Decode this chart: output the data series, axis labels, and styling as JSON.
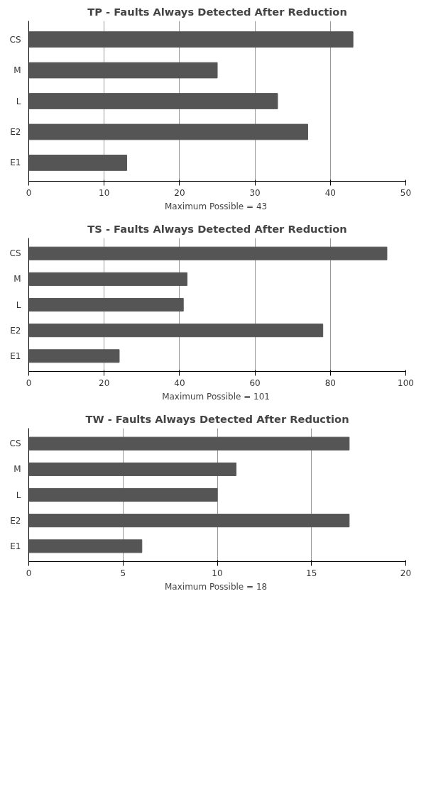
{
  "chart_data": [
    {
      "type": "bar",
      "orientation": "horizontal",
      "title": "TP - Faults Always Detected After Reduction",
      "xlabel": "Maximum Possible  = 43",
      "categories": [
        "CS",
        "M",
        "L",
        "E2",
        "E1"
      ],
      "values": [
        43,
        25,
        33,
        37,
        13
      ],
      "color": "#555555",
      "xlim": [
        0,
        50
      ],
      "xticks": [
        0,
        10,
        20,
        30,
        40,
        50
      ],
      "grid": "x"
    },
    {
      "type": "bar",
      "orientation": "horizontal",
      "title": "TS - Faults Always Detected After Reduction",
      "xlabel": "Maximum Possible  = 101",
      "categories": [
        "CS",
        "M",
        "L",
        "E2",
        "E1"
      ],
      "values": [
        95,
        42,
        41,
        78,
        24
      ],
      "color": "#555555",
      "xlim": [
        0,
        100
      ],
      "xticks": [
        0,
        20,
        40,
        60,
        80,
        100
      ],
      "grid": "x"
    },
    {
      "type": "bar",
      "orientation": "horizontal",
      "title": "TW - Faults Always Detected After Reduction",
      "xlabel": "Maximum Possible  = 18",
      "categories": [
        "CS",
        "M",
        "L",
        "E2",
        "E1"
      ],
      "values": [
        17,
        11,
        10,
        17,
        6
      ],
      "color": "#555555",
      "xlim": [
        0,
        20
      ],
      "xticks": [
        0,
        5,
        10,
        15,
        20
      ],
      "grid": "x"
    }
  ]
}
